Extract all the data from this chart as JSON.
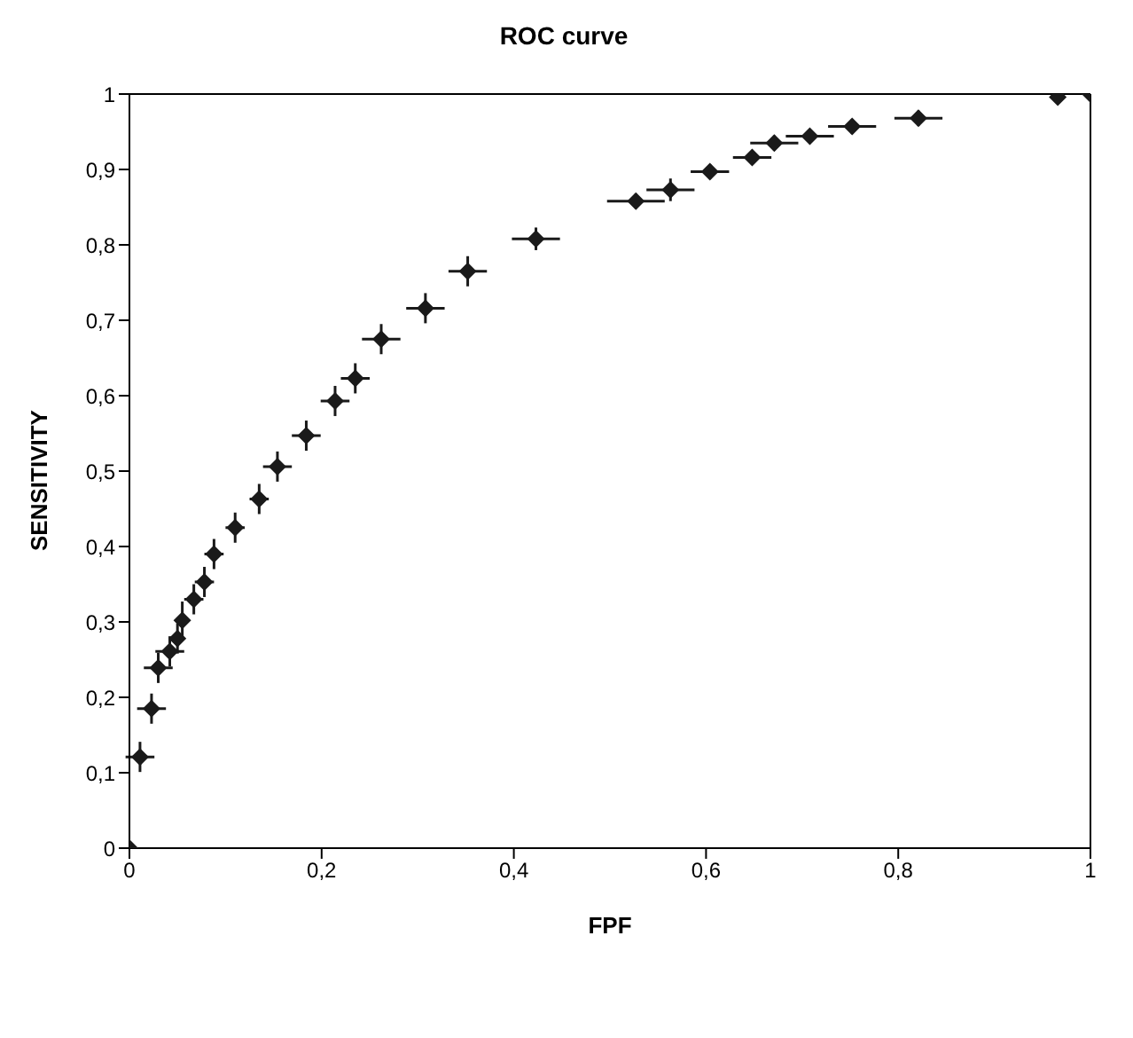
{
  "chart_data": {
    "type": "scatter",
    "title": "ROC curve",
    "xlabel": "FPF",
    "ylabel": "SENSITIVITY",
    "x": [
      0,
      0.011,
      0.023,
      0.03,
      0.042,
      0.05,
      0.055,
      0.067,
      0.078,
      0.088,
      0.11,
      0.135,
      0.154,
      0.184,
      0.214,
      0.235,
      0.262,
      0.308,
      0.352,
      0.423,
      0.527,
      0.563,
      0.604,
      0.648,
      0.671,
      0.708,
      0.752,
      0.821,
      0.966,
      1
    ],
    "series": [
      {
        "color": "#1a1a1a",
        "values": [
          0,
          0.121,
          0.185,
          0.239,
          0.261,
          0.278,
          0.302,
          0.33,
          0.353,
          0.39,
          0.425,
          0.463,
          0.506,
          0.547,
          0.593,
          0.623,
          0.675,
          0.716,
          0.765,
          0.808,
          0.858,
          0.873,
          0.897,
          0.916,
          0.935,
          0.944,
          0.957,
          0.968,
          0.996,
          1
        ],
        "errors": [
          null,
          0.02,
          0.02,
          0.02,
          0.02,
          0.02,
          0.025,
          0.02,
          0.02,
          0.02,
          0.02,
          0.02,
          0.02,
          0.02,
          0.02,
          0.02,
          0.02,
          0.02,
          0.02,
          0.015,
          0.01,
          0.015,
          0.01,
          0.01,
          0.01,
          0.01,
          0.01,
          0.01,
          null,
          null
        ],
        "xerrors": [
          null,
          0.015,
          0.015,
          0.015,
          0.015,
          0.005,
          0.005,
          0.01,
          0.01,
          0.01,
          0.01,
          0.01,
          0.015,
          0.015,
          0.015,
          0.015,
          0.02,
          0.02,
          0.02,
          0.025,
          0.03,
          0.025,
          0.02,
          0.02,
          0.025,
          0.025,
          0.025,
          0.025,
          null,
          null
        ]
      }
    ],
    "xlim": [
      0,
      1
    ],
    "ylim": [
      0,
      1
    ],
    "xticks": [
      0,
      {
        "value": 0.2,
        "label": "0,2"
      },
      {
        "value": 0.4,
        "label": "0,4"
      },
      {
        "value": 0.6,
        "label": "0,6"
      },
      {
        "value": 0.8,
        "label": "0,8"
      },
      1
    ],
    "yticks": [
      0,
      {
        "value": 0.1,
        "label": "0,1"
      },
      {
        "value": 0.2,
        "label": "0,2"
      },
      {
        "value": 0.3,
        "label": "0,3"
      },
      {
        "value": 0.4,
        "label": "0,4"
      },
      {
        "value": 0.5,
        "label": "0,5"
      },
      {
        "value": 0.6,
        "label": "0,6"
      },
      {
        "value": 0.7,
        "label": "0,7"
      },
      {
        "value": 0.8,
        "label": "0,8"
      },
      {
        "value": 0.9,
        "label": "0,9"
      },
      1
    ],
    "grid": false,
    "legend": false,
    "marker": "diamond"
  }
}
